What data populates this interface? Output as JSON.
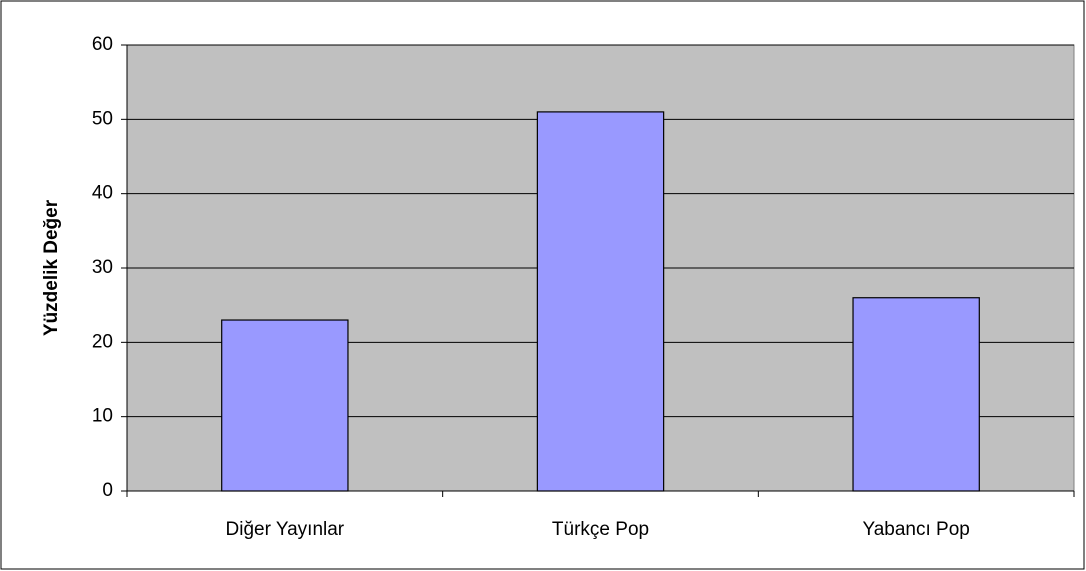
{
  "chart_data": {
    "type": "bar",
    "ylabel": "Yüzdelik Değer",
    "categories": [
      "Diğer Yayınlar",
      "Türkçe Pop",
      "Yabancı Pop"
    ],
    "values": [
      23,
      51,
      26
    ],
    "color": "#9999ff",
    "ylim": [
      0,
      60
    ],
    "yticks": [
      0,
      10,
      20,
      30,
      40,
      50,
      60
    ],
    "grid": true
  }
}
